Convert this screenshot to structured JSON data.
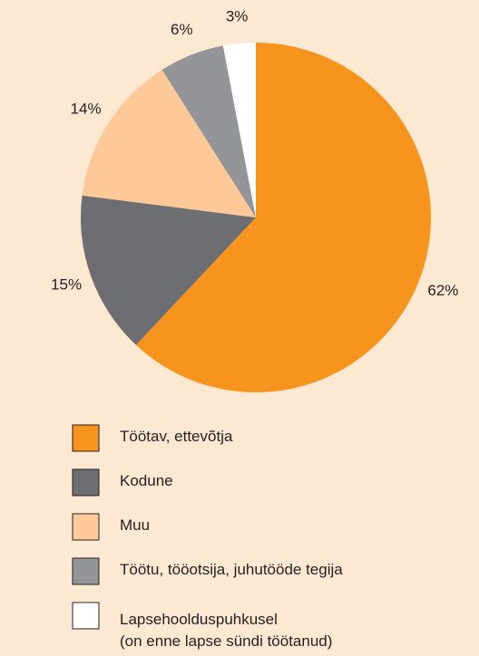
{
  "chart_data": {
    "type": "pie",
    "categories": [
      "Töötav, ettevõtja",
      "Kodune",
      "Muu",
      "Töötu, tööotsija, juhutööde tegija",
      "Lapsehoolduspuhkusel\n(on enne lapse sündi töötanud)"
    ],
    "values": [
      62,
      15,
      14,
      6,
      3
    ],
    "value_labels": [
      "62%",
      "15%",
      "14%",
      "6%",
      "3%"
    ],
    "colors": [
      "#f7941d",
      "#6d6e71",
      "#fdc998",
      "#939598",
      "#ffffff"
    ]
  }
}
